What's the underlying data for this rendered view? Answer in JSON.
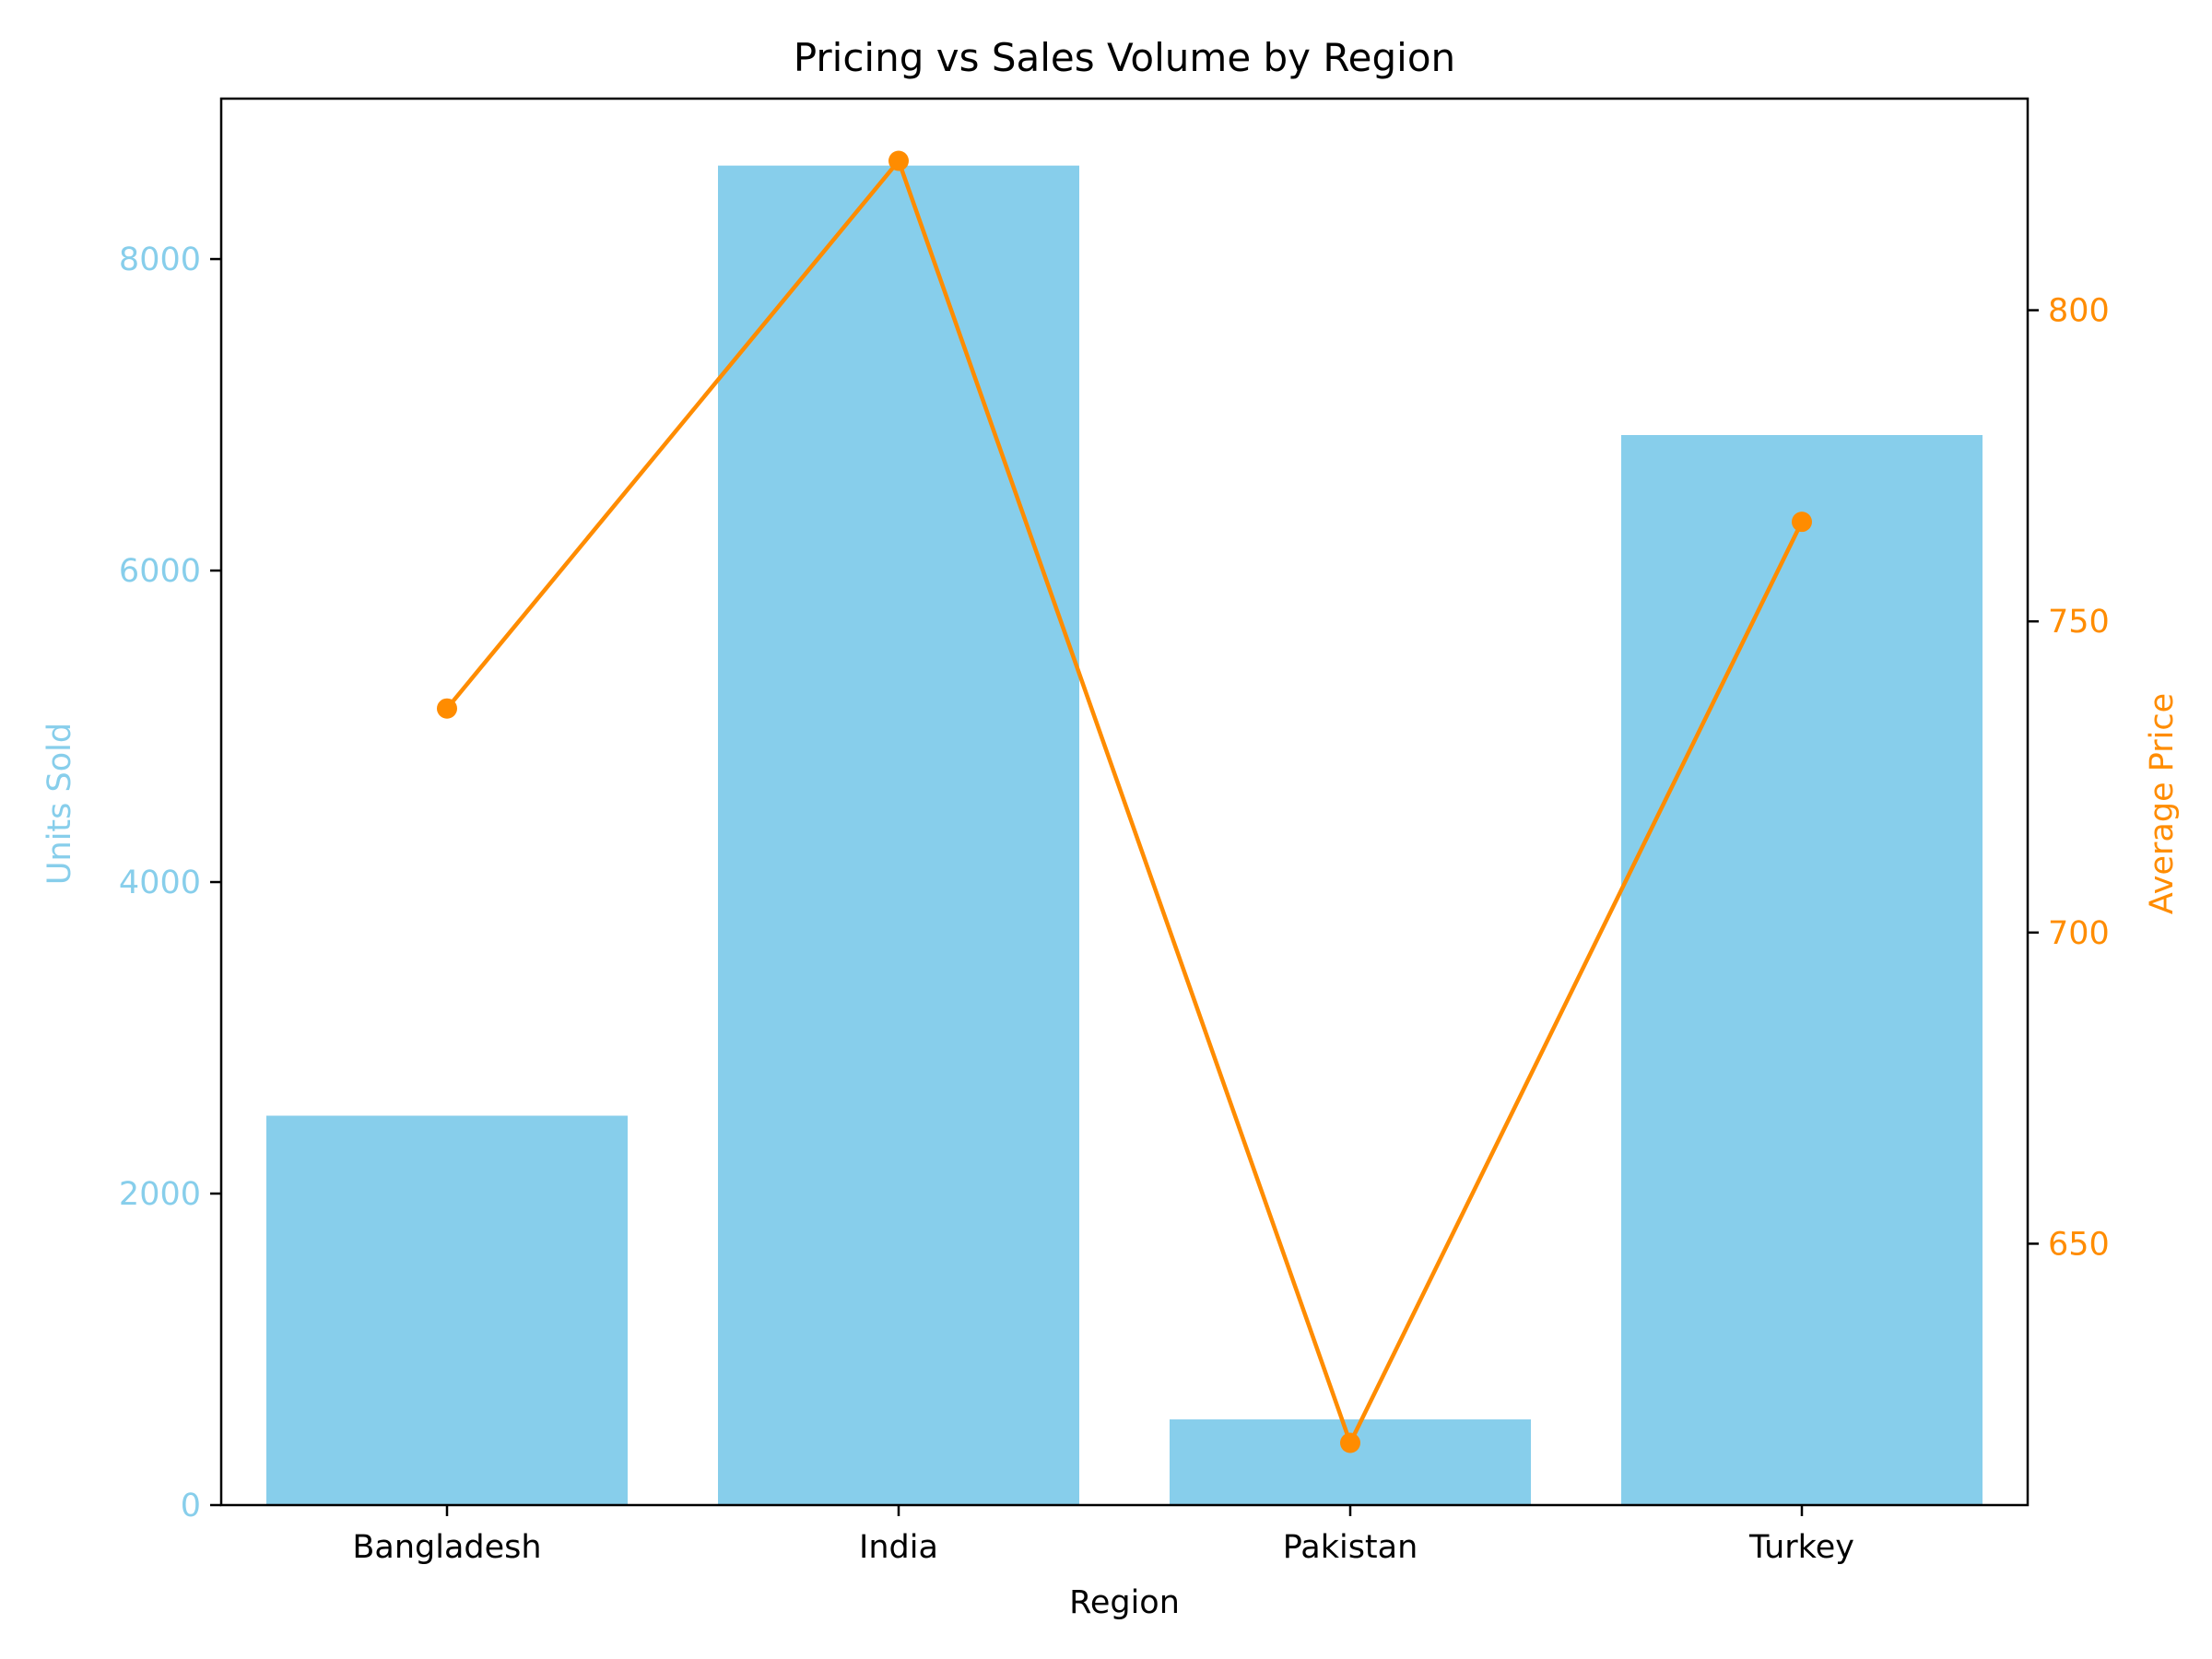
{
  "chart_data": {
    "type": "bar+line",
    "title": "Pricing vs Sales Volume by Region",
    "xlabel": "Region",
    "categories": [
      "Bangladesh",
      "India",
      "Pakistan",
      "Turkey"
    ],
    "series": [
      {
        "name": "Units Sold",
        "type": "bar",
        "axis": "left",
        "color": "#87CEEB",
        "values": [
          2500,
          8600,
          550,
          6870
        ]
      },
      {
        "name": "Average Price",
        "type": "line",
        "axis": "right",
        "color": "#FF8C00",
        "marker": "circle",
        "values": [
          736,
          824,
          618,
          766
        ]
      }
    ],
    "y_left": {
      "label": "Units Sold",
      "ylim": [
        0,
        9030
      ],
      "ticks": [
        0,
        2000,
        4000,
        6000,
        8000
      ],
      "color": "#87CEEB"
    },
    "y_right": {
      "label": "Average Price",
      "ylim": [
        608,
        834
      ],
      "ticks": [
        650,
        700,
        750,
        800
      ],
      "color": "#FF8C00"
    },
    "grid": false,
    "legend": "none"
  }
}
